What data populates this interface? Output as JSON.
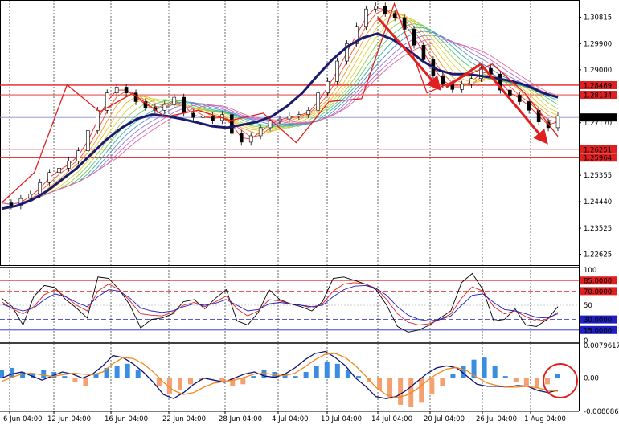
{
  "chart_data": [
    {
      "type": "line",
      "panel": "price",
      "title": "",
      "ylim": [
        1.2225,
        1.313
      ],
      "y_ticks": [
        "1.30815",
        "1.29900",
        "1.29000",
        "1.28469",
        "1.28134",
        "1.27353",
        "1.27170",
        "1.26251",
        "1.25964",
        "1.25355",
        "1.24440",
        "1.23525",
        "1.22625"
      ],
      "current_price": "1.27353",
      "levels": [
        {
          "value": 1.28469,
          "label": "1.28469"
        },
        {
          "value": 1.28134,
          "label": "1.28134"
        },
        {
          "value": 1.26251,
          "label": "1.26251"
        },
        {
          "value": 1.25964,
          "label": "1.25964"
        }
      ],
      "zigzag": [
        1.244,
        1.2545,
        1.2848,
        1.2755,
        1.2818,
        1.2737,
        1.276,
        1.2725,
        1.275,
        1.2648,
        1.279,
        1.28,
        1.3128,
        1.282,
        1.287,
        1.292,
        1.2818,
        1.267
      ],
      "close_series": [
        1.244,
        1.243,
        1.2455,
        1.247,
        1.251,
        1.2545,
        1.256,
        1.2585,
        1.262,
        1.269,
        1.276,
        1.282,
        1.284,
        1.282,
        1.279,
        1.277,
        1.276,
        1.278,
        1.2805,
        1.275,
        1.2735,
        1.274,
        1.2725,
        1.2745,
        1.268,
        1.265,
        1.2672,
        1.27,
        1.2725,
        1.273,
        1.274,
        1.2745,
        1.276,
        1.282,
        1.286,
        1.293,
        1.299,
        1.305,
        1.311,
        1.312,
        1.3095,
        1.308,
        1.304,
        1.2985,
        1.2935,
        1.288,
        1.285,
        1.2832,
        1.285,
        1.287,
        1.2905,
        1.2885,
        1.283,
        1.2812,
        1.279,
        1.276,
        1.272,
        1.27,
        1.274
      ],
      "slow_ma": [
        1.242,
        1.243,
        1.245,
        1.248,
        1.252,
        1.256,
        1.261,
        1.266,
        1.27,
        1.273,
        1.2745,
        1.274,
        1.273,
        1.2718,
        1.2705,
        1.27,
        1.271,
        1.272,
        1.274,
        1.2775,
        1.282,
        1.288,
        1.2935,
        1.298,
        1.301,
        1.3025,
        1.3005,
        1.297,
        1.293,
        1.29,
        1.2885,
        1.2885,
        1.2878,
        1.287,
        1.286,
        1.2845,
        1.282,
        1.2805
      ],
      "arrows": [
        {
          "from": [
            1.308,
            "14 Jul"
          ],
          "to": [
            1.284,
            "20 Jul"
          ]
        },
        {
          "from": [
            1.292,
            "26 Jul"
          ],
          "to": [
            1.2655,
            "1 Aug"
          ]
        }
      ]
    },
    {
      "type": "line",
      "panel": "oscillator",
      "ylim": [
        0,
        100
      ],
      "y_ticks": [
        "100",
        "85.0000",
        "70.0000",
        "50",
        "30.0000",
        "15.0000",
        "0"
      ],
      "levels": [
        85,
        70,
        30,
        15
      ],
      "series": [
        {
          "values": [
            60,
            48,
            22,
            62,
            78,
            75,
            58,
            46,
            32,
            90,
            88,
            72,
            50,
            18,
            30,
            32,
            38,
            55,
            58,
            45,
            60,
            72,
            28,
            22,
            40,
            72,
            58,
            52,
            48,
            42,
            55,
            88,
            90,
            85,
            80,
            72,
            50,
            20,
            12,
            15,
            22,
            32,
            42,
            82,
            95,
            72,
            28,
            30,
            45,
            22,
            20,
            30,
            48
          ]
        },
        {
          "values": [
            55,
            45,
            38,
            48,
            65,
            72,
            62,
            50,
            42,
            70,
            80,
            72,
            56,
            38,
            36,
            35,
            40,
            50,
            54,
            48,
            55,
            63,
            45,
            35,
            42,
            58,
            56,
            52,
            50,
            46,
            52,
            70,
            80,
            82,
            80,
            74,
            58,
            38,
            26,
            22,
            24,
            30,
            38,
            60,
            76,
            70,
            48,
            38,
            42,
            34,
            28,
            30,
            40
          ]
        },
        {
          "values": [
            52,
            46,
            42,
            46,
            58,
            66,
            62,
            54,
            48,
            62,
            72,
            70,
            60,
            46,
            42,
            40,
            42,
            48,
            52,
            50,
            53,
            58,
            50,
            42,
            44,
            52,
            54,
            52,
            50,
            48,
            50,
            62,
            72,
            77,
            78,
            74,
            64,
            48,
            36,
            30,
            28,
            30,
            35,
            50,
            64,
            66,
            54,
            44,
            42,
            38,
            33,
            32,
            38
          ]
        }
      ]
    },
    {
      "type": "bar",
      "panel": "macd",
      "ylim": [
        -0.0080865,
        0.0079617
      ],
      "y_ticks": [
        "0.0079617",
        "0.00",
        "-0.0080865"
      ],
      "histogram": [
        0.002,
        0.0025,
        0.0015,
        0.001,
        0.002,
        0.0015,
        0.0005,
        -0.001,
        -0.002,
        0.001,
        0.0025,
        0.003,
        0.0035,
        0.002,
        0.0,
        -0.002,
        -0.004,
        -0.003,
        -0.0015,
        -0.0005,
        0.0,
        -0.001,
        -0.002,
        -0.0015,
        0.0005,
        0.002,
        0.0015,
        0.001,
        0.0005,
        0.0015,
        0.003,
        0.004,
        0.0035,
        0.002,
        0.0005,
        -0.001,
        -0.003,
        -0.005,
        -0.0065,
        -0.007,
        -0.006,
        -0.004,
        -0.002,
        0.001,
        0.003,
        0.0045,
        0.005,
        0.003,
        0.0005,
        -0.001,
        -0.002,
        -0.0025,
        -0.0015,
        0.001
      ],
      "series": [
        {
          "values": [
            0.0,
            0.001,
            0.0015,
            0.0005,
            -0.0005,
            0.0005,
            0.0015,
            0.001,
            0.0,
            0.001,
            0.003,
            0.0055,
            0.005,
            0.0035,
            0.0015,
            -0.001,
            -0.004,
            -0.005,
            -0.0035,
            -0.0015,
            0.0,
            -0.0005,
            -0.001,
            0.0,
            0.001,
            0.0015,
            0.0005,
            0.0002,
            0.001,
            0.0025,
            0.0045,
            0.006,
            0.0065,
            0.005,
            0.003,
            0.0,
            -0.002,
            -0.0045,
            -0.005,
            -0.0045,
            -0.003,
            -0.001,
            0.001,
            0.0025,
            0.003,
            0.0025,
            0.0005,
            -0.0015,
            -0.002,
            -0.002,
            -0.0022,
            -0.0018,
            -0.002,
            -0.003,
            -0.0035,
            -0.003
          ]
        },
        {
          "values": [
            -0.0008,
            0.0002,
            0.001,
            0.0012,
            0.0008,
            0.0004,
            0.0008,
            0.0012,
            0.001,
            0.0008,
            0.0015,
            0.0035,
            0.005,
            0.0048,
            0.0035,
            0.0015,
            -0.001,
            -0.003,
            -0.004,
            -0.0035,
            -0.0022,
            -0.0012,
            -0.0008,
            -0.0005,
            0.0002,
            0.001,
            0.0012,
            0.0008,
            0.0006,
            0.0012,
            0.0028,
            0.0045,
            0.0058,
            0.006,
            0.005,
            0.003,
            0.0005,
            -0.0022,
            -0.004,
            -0.0048,
            -0.0042,
            -0.0028,
            -0.0008,
            0.001,
            0.0022,
            0.0026,
            0.0018,
            0.0002,
            -0.0012,
            -0.0018,
            -0.0022,
            -0.0022,
            -0.002,
            -0.0024,
            -0.003,
            -0.0032
          ]
        }
      ]
    }
  ],
  "time_axis": [
    "6 Jun 04:00",
    "12 Jun 04:00",
    "16 Jun 04:00",
    "22 Jun 04:00",
    "28 Jun 04:00",
    "4 Jul 04:00",
    "10 Jul 04:00",
    "14 Jul 04:00",
    "20 Jul 04:00",
    "26 Jul 04:00",
    "1 Aug 04:00"
  ],
  "colors": {
    "level_line": "#e02020",
    "zigzag": "#e02020",
    "slow_ma": "#1a1a6e",
    "current_price_line": "#8a8ad0",
    "osc_main": "#000000",
    "osc_red": "#e02020",
    "osc_blue": "#2020c0",
    "macd_pos": "#3a8ee0",
    "macd_neg": "#f4a070",
    "macd_line": "#101070",
    "signal_line": "#f08a20"
  }
}
